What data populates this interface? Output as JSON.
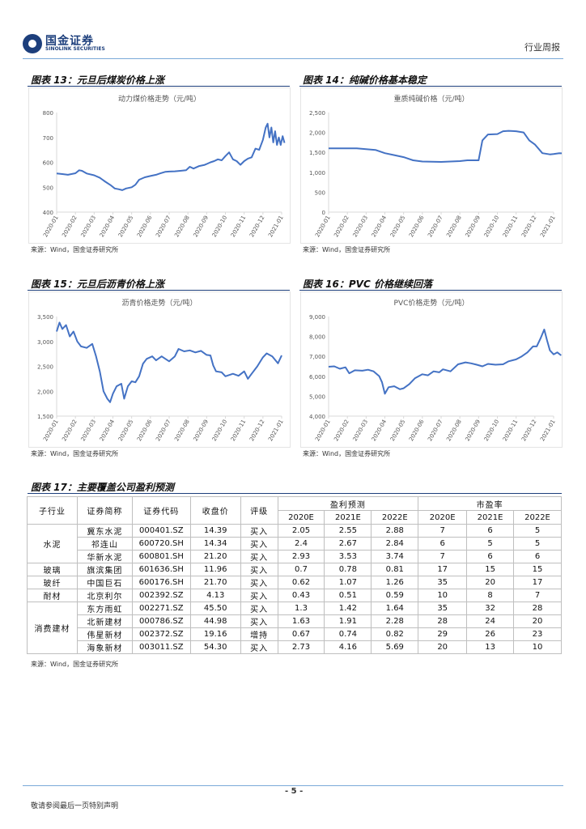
{
  "header": {
    "logo_cn": "国金证券",
    "logo_en": "SINOLINK SECURITIES",
    "report_type": "行业周报"
  },
  "fig13": {
    "title": "图表 13：元旦后煤炭价格上涨",
    "source": "来源：Wind，国金证券研究所",
    "chart_data": {
      "type": "line",
      "title": "动力煤价格走势（元/吨）",
      "x": [
        "2020-01",
        "2020-02",
        "2020-03",
        "2020-04",
        "2020-05",
        "2020-06",
        "2020-07",
        "2020-08",
        "2020-09",
        "2020-10",
        "2020-11",
        "2020-12",
        "2021-01"
      ],
      "ylim": [
        400,
        800
      ],
      "yticks": [
        400,
        500,
        600,
        700,
        800
      ],
      "series": [
        {
          "name": "动力煤价格",
          "values": [
            [
              0,
              555
            ],
            [
              0.3,
              553
            ],
            [
              0.6,
              550
            ],
            [
              1,
              556
            ],
            [
              1.2,
              568
            ],
            [
              1.35,
              566
            ],
            [
              1.6,
              555
            ],
            [
              2,
              548
            ],
            [
              2.3,
              538
            ],
            [
              2.6,
              522
            ],
            [
              2.9,
              507
            ],
            [
              3.1,
              495
            ],
            [
              3.3,
              492
            ],
            [
              3.5,
              488
            ],
            [
              3.7,
              495
            ],
            [
              4,
              500
            ],
            [
              4.2,
              510
            ],
            [
              4.4,
              530
            ],
            [
              4.7,
              540
            ],
            [
              5,
              545
            ],
            [
              5.3,
              550
            ],
            [
              5.5,
              555
            ],
            [
              5.8,
              562
            ],
            [
              6,
              563
            ],
            [
              6.3,
              564
            ],
            [
              6.6,
              566
            ],
            [
              6.9,
              568
            ],
            [
              7.1,
              582
            ],
            [
              7.3,
              575
            ],
            [
              7.6,
              585
            ],
            [
              7.9,
              590
            ],
            [
              8.2,
              600
            ],
            [
              8.4,
              605
            ],
            [
              8.6,
              612
            ],
            [
              8.8,
              608
            ],
            [
              9,
              625
            ],
            [
              9.2,
              640
            ],
            [
              9.4,
              612
            ],
            [
              9.6,
              605
            ],
            [
              9.8,
              590
            ],
            [
              10,
              605
            ],
            [
              10.2,
              615
            ],
            [
              10.4,
              620
            ],
            [
              10.6,
              655
            ],
            [
              10.8,
              650
            ],
            [
              11,
              690
            ],
            [
              11.15,
              740
            ],
            [
              11.25,
              755
            ],
            [
              11.35,
              700
            ],
            [
              11.45,
              740
            ],
            [
              11.55,
              680
            ],
            [
              11.65,
              725
            ],
            [
              11.75,
              670
            ],
            [
              11.85,
              700
            ],
            [
              11.95,
              670
            ],
            [
              12.05,
              705
            ],
            [
              12.15,
              678
            ]
          ]
        }
      ]
    }
  },
  "fig14": {
    "title": "图表 14：纯碱价格基本稳定",
    "source": "来源：Wind，国金证券研究所",
    "chart_data": {
      "type": "line",
      "title": "重质纯碱价格（元/吨）",
      "x": [
        "2020-01",
        "2020-02",
        "2020-03",
        "2020-04",
        "2020-05",
        "2020-06",
        "2020-07",
        "2020-08",
        "2020-09",
        "2020-10",
        "2020-11",
        "2020-12",
        "2021-01"
      ],
      "ylim": [
        0,
        2500
      ],
      "yticks": [
        "0",
        "500",
        "1,000",
        "1,500",
        "2,000",
        "2,500"
      ],
      "series": [
        {
          "name": "重质纯碱价格",
          "values": [
            [
              0,
              1600
            ],
            [
              1.5,
              1600
            ],
            [
              2,
              1580
            ],
            [
              2.5,
              1560
            ],
            [
              3,
              1480
            ],
            [
              3.5,
              1430
            ],
            [
              4,
              1380
            ],
            [
              4.5,
              1300
            ],
            [
              5,
              1270
            ],
            [
              6,
              1260
            ],
            [
              7,
              1280
            ],
            [
              7.4,
              1300
            ],
            [
              8,
              1300
            ],
            [
              8.2,
              1800
            ],
            [
              8.5,
              1950
            ],
            [
              9,
              1960
            ],
            [
              9.3,
              2030
            ],
            [
              9.6,
              2040
            ],
            [
              10,
              2030
            ],
            [
              10.4,
              2000
            ],
            [
              10.7,
              1800
            ],
            [
              11,
              1700
            ],
            [
              11.4,
              1480
            ],
            [
              11.8,
              1450
            ],
            [
              12,
              1460
            ],
            [
              12.3,
              1480
            ],
            [
              12.6,
              1470
            ]
          ]
        }
      ]
    }
  },
  "fig15": {
    "title": "图表 15：元旦后沥青价格上涨",
    "source": "来源：Wind，国金证券研究所",
    "chart_data": {
      "type": "line",
      "title": "沥青价格走势（元/吨）",
      "x": [
        "2020-01",
        "2020-02",
        "2020-03",
        "2020-04",
        "2020-05",
        "2020-06",
        "2020-07",
        "2020-08",
        "2020-09",
        "2020-10",
        "2020-11",
        "2020-12",
        "2021-01"
      ],
      "ylim": [
        1500,
        3500
      ],
      "yticks": [
        "1,500",
        "2,000",
        "2,500",
        "3,000",
        "3,500"
      ],
      "series": [
        {
          "name": "沥青价格",
          "values": [
            [
              0,
              3200
            ],
            [
              0.15,
              3380
            ],
            [
              0.3,
              3250
            ],
            [
              0.5,
              3330
            ],
            [
              0.7,
              3100
            ],
            [
              0.9,
              3200
            ],
            [
              1.1,
              3000
            ],
            [
              1.3,
              2900
            ],
            [
              1.6,
              2870
            ],
            [
              1.9,
              2950
            ],
            [
              2.1,
              2700
            ],
            [
              2.3,
              2400
            ],
            [
              2.5,
              2000
            ],
            [
              2.7,
              1850
            ],
            [
              2.85,
              1780
            ],
            [
              3,
              1950
            ],
            [
              3.2,
              2100
            ],
            [
              3.45,
              2150
            ],
            [
              3.6,
              1850
            ],
            [
              3.8,
              2100
            ],
            [
              4,
              2200
            ],
            [
              4.2,
              2180
            ],
            [
              4.4,
              2300
            ],
            [
              4.6,
              2550
            ],
            [
              4.8,
              2650
            ],
            [
              5.1,
              2700
            ],
            [
              5.3,
              2620
            ],
            [
              5.6,
              2700
            ],
            [
              5.8,
              2650
            ],
            [
              6,
              2600
            ],
            [
              6.3,
              2700
            ],
            [
              6.5,
              2850
            ],
            [
              6.8,
              2800
            ],
            [
              7.1,
              2820
            ],
            [
              7.4,
              2780
            ],
            [
              7.7,
              2810
            ],
            [
              8,
              2730
            ],
            [
              8.2,
              2720
            ],
            [
              8.35,
              2520
            ],
            [
              8.5,
              2400
            ],
            [
              8.8,
              2380
            ],
            [
              9,
              2300
            ],
            [
              9.4,
              2350
            ],
            [
              9.7,
              2310
            ],
            [
              10,
              2400
            ],
            [
              10.2,
              2250
            ],
            [
              10.4,
              2350
            ],
            [
              10.7,
              2500
            ],
            [
              11,
              2680
            ],
            [
              11.2,
              2760
            ],
            [
              11.5,
              2700
            ],
            [
              11.8,
              2560
            ],
            [
              12,
              2720
            ]
          ]
        }
      ]
    }
  },
  "fig16": {
    "title": "图表 16：PVC 价格继续回落",
    "source": "来源：Wind，国金证券研究所",
    "chart_data": {
      "type": "line",
      "title": "PVC价格走势（元/吨）",
      "x": [
        "2020-01",
        "2020-02",
        "2020-03",
        "2020-04",
        "2020-05",
        "2020-06",
        "2020-07",
        "2020-08",
        "2020-09",
        "2020-10",
        "2020-11",
        "2020-12",
        "2021-01"
      ],
      "ylim": [
        4000,
        9000
      ],
      "yticks": [
        "4,000",
        "5,000",
        "6,000",
        "7,000",
        "8,000",
        "9,000"
      ],
      "series": [
        {
          "name": "PVC价格",
          "values": [
            [
              0,
              6480
            ],
            [
              0.3,
              6500
            ],
            [
              0.6,
              6380
            ],
            [
              0.9,
              6450
            ],
            [
              1.1,
              6150
            ],
            [
              1.4,
              6300
            ],
            [
              1.8,
              6280
            ],
            [
              2.1,
              6330
            ],
            [
              2.4,
              6250
            ],
            [
              2.7,
              6000
            ],
            [
              2.85,
              5700
            ],
            [
              3,
              5120
            ],
            [
              3.2,
              5450
            ],
            [
              3.5,
              5500
            ],
            [
              3.8,
              5350
            ],
            [
              4,
              5400
            ],
            [
              4.3,
              5600
            ],
            [
              4.6,
              5900
            ],
            [
              5,
              6100
            ],
            [
              5.3,
              6050
            ],
            [
              5.6,
              6250
            ],
            [
              5.9,
              6200
            ],
            [
              6.1,
              6350
            ],
            [
              6.5,
              6250
            ],
            [
              6.9,
              6600
            ],
            [
              7.3,
              6700
            ],
            [
              7.6,
              6650
            ],
            [
              7.9,
              6580
            ],
            [
              8.2,
              6500
            ],
            [
              8.5,
              6620
            ],
            [
              8.9,
              6580
            ],
            [
              9.3,
              6600
            ],
            [
              9.6,
              6750
            ],
            [
              10,
              6850
            ],
            [
              10.3,
              7000
            ],
            [
              10.6,
              7200
            ],
            [
              10.9,
              7500
            ],
            [
              11.1,
              7500
            ],
            [
              11.3,
              7900
            ],
            [
              11.5,
              8350
            ],
            [
              11.65,
              7800
            ],
            [
              11.8,
              7300
            ],
            [
              12,
              7100
            ],
            [
              12.2,
              7200
            ],
            [
              12.4,
              7050
            ]
          ]
        }
      ]
    }
  },
  "fig17": {
    "title": "图表 17：主要覆盖公司盈利预测",
    "source": "来源：Wind，国金证券研究所",
    "headers": {
      "sub_industry": "子行业",
      "short_name": "证券简称",
      "code": "证券代码",
      "close": "收盘价",
      "rating": "评级",
      "eps_group": "盈利预测",
      "pe_group": "市盈率",
      "years": [
        "2020E",
        "2021E",
        "2022E"
      ]
    },
    "groups": [
      "水泥",
      "玻璃",
      "玻纤",
      "耐材",
      "消费建材"
    ],
    "rows": [
      {
        "name": "冀东水泥",
        "code": "000401.SZ",
        "close": "14.39",
        "rating": "买入",
        "eps": [
          "2.05",
          "2.55",
          "2.88"
        ],
        "pe": [
          "7",
          "6",
          "5"
        ]
      },
      {
        "name": "祁连山",
        "code": "600720.SH",
        "close": "14.34",
        "rating": "买入",
        "eps": [
          "2.4",
          "2.67",
          "2.84"
        ],
        "pe": [
          "6",
          "5",
          "5"
        ]
      },
      {
        "name": "华新水泥",
        "code": "600801.SH",
        "close": "21.20",
        "rating": "买入",
        "eps": [
          "2.93",
          "3.53",
          "3.74"
        ],
        "pe": [
          "7",
          "6",
          "6"
        ]
      },
      {
        "name": "旗滨集团",
        "code": "601636.SH",
        "close": "11.96",
        "rating": "买入",
        "eps": [
          "0.7",
          "0.78",
          "0.81"
        ],
        "pe": [
          "17",
          "15",
          "15"
        ]
      },
      {
        "name": "中国巨石",
        "code": "600176.SH",
        "close": "21.70",
        "rating": "买入",
        "eps": [
          "0.62",
          "1.07",
          "1.26"
        ],
        "pe": [
          "35",
          "20",
          "17"
        ]
      },
      {
        "name": "北京利尔",
        "code": "002392.SZ",
        "close": "4.13",
        "rating": "买入",
        "eps": [
          "0.43",
          "0.51",
          "0.59"
        ],
        "pe": [
          "10",
          "8",
          "7"
        ]
      },
      {
        "name": "东方雨虹",
        "code": "002271.SZ",
        "close": "45.50",
        "rating": "买入",
        "eps": [
          "1.3",
          "1.42",
          "1.64"
        ],
        "pe": [
          "35",
          "32",
          "28"
        ]
      },
      {
        "name": "北新建材",
        "code": "000786.SZ",
        "close": "44.98",
        "rating": "买入",
        "eps": [
          "1.63",
          "1.91",
          "2.28"
        ],
        "pe": [
          "28",
          "24",
          "20"
        ]
      },
      {
        "name": "伟星新材",
        "code": "002372.SZ",
        "close": "19.16",
        "rating": "增持",
        "eps": [
          "0.67",
          "0.74",
          "0.82"
        ],
        "pe": [
          "29",
          "26",
          "23"
        ]
      },
      {
        "name": "海象新材",
        "code": "003011.SZ",
        "close": "54.30",
        "rating": "买入",
        "eps": [
          "2.73",
          "4.16",
          "5.69"
        ],
        "pe": [
          "20",
          "13",
          "10"
        ]
      }
    ]
  },
  "footer": {
    "page": "- 5 -",
    "disclaimer": "敬请参阅最后一页特别声明"
  },
  "colors": {
    "line": "#4472c4",
    "brand": "#1d3f7c",
    "rule": "#7aa9d8"
  }
}
